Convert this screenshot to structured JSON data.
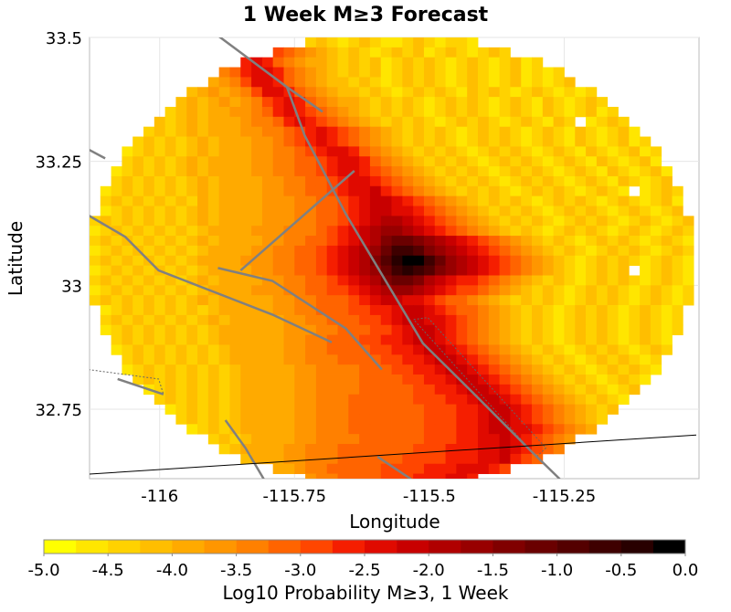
{
  "chart_data": {
    "type": "heatmap",
    "title": "1 Week M≥3 Forecast",
    "xlabel": "Longitude",
    "ylabel": "Latitude",
    "xlim": [
      -116.13,
      -115.0
    ],
    "ylim": [
      32.61,
      33.5
    ],
    "xticks": [
      -116,
      -115.75,
      -115.5,
      -115.25
    ],
    "xtick_labels": [
      "-116",
      "-115.75",
      "-115.5",
      "-115.25"
    ],
    "yticks": [
      33.5,
      33.25,
      33.0,
      32.75
    ],
    "ytick_labels": [
      "33.5",
      "33.25",
      "33",
      "32.75"
    ],
    "grid": true,
    "grid_cells": {
      "lon_start": -116.13,
      "lat_start": 33.5,
      "cell_deg": 0.02,
      "encoding": "a..t = color bins -5.0 to 0.0 in 0.25 steps, '.' = no value",
      "rows": [
        "....................cdcbcdcbbcdcbccb",
        ".................ihgfedcdcbcdcdbcdcbcdc",
        "..............jkjhgfeedcdcdbcdcdcbcdcbcdbc",
        "............ghjkkjhgfedcdcdbcdcdcbcdcbcdbcbc",
        "...........efgikkjhgfeddcdcbcdcdcbcdcbcdbcbcd",
        ".........defefgikkjhgfeddcdcbcdcdcbdcdcbcdcbcbc",
        "........dedefefgijkjhgfeedcdcdcbcdcdcbcdcbdcbcdc",
        ".......cdedeeffghjkjihgfedcdcdcbcdcdcbcdcbdcbcdbc",
        "......dcdedeeefgghjkjihgfedcdcdcbcdcdcbcdcbdc.bcdc",
        ".....cdcdedeeeffgghijkjihgfedcdcdcbcdcdcbcdcbdcbcdb",
        "....cdcdcdedeeeffghijkjihgfedcdcdcbcdcdcbcdcbdcbcdbc",
        "...bcdcdcdedeeeffgghijkkjhgfedcdcdcbcdcdcbcdcbdcbcdbc",
        "...cdcdcdedeeeeffgghhijkkjhgfedcdcdcbcdcdcbcdcbdcbcdb",
        "..bcdcdcdedeeeeffgghhijkkjihgfedcdcdcbcdcdcbcdcbdcbcdb",
        "..cdcdcdcdedeeeeffgghhijkkjihgfedcdcdcbcdcdcbcdcbdcbcd",
        ".bcdcdcdcdedeeeeffgghhijkkljihgfedcdcdcbcdcdcbcdcb.bcdc",
        ".cdcdcdcdcedeeeefffgghhijkllkjihgfedcdcdcbcdcdcbcdcbcdb",
        ".bcdcdcdcdedeeeefffgghhijkllkkjihgfedcdcdcbcdcdcbcdcbcd",
        "cdcdcdcdcdedeeeefffgghhijklmmlkjihgfedcdcdcbcdcdcbcdcbcd",
        "bcdcdcdcdcdeeeefffggghijklmnnmlkjihgfedcdcbcdcdcbcdcbcdc",
        "cdcdcdcdcdedeeeeffgghhijklmopponmlkjihgfedcdcbcdcdcbcdcb",
        "bcdcdcdcdcdeeeeffgghhijklmnprrqonmlkjihgfedcdcbcdcdcbcdc",
        "cdcdcdcdcdeeeefffgghhijklmoqsttrpnmlkjihgfedcbcdcdcbcdcb",
        "bcdcdcdcdcdeeeeffgghhijklmnprsrqonmlkjihgfedcbcdcd.bcdcb",
        "cdcdcdcdcdedeeeeffgghhijklmoppomlkjjihgfedcdcbcdcdcbcdcb",
        "bcdcdcdcdcdeeeefffgghhiijklmnnmlkjiihgfedcdcbcdcdcbcdcbc",
        "cdcdcdcdcdedeeeeeffgghhhijkllkkjihhgfedcdcdcbcdcdcbcdcbc",
        ".bcdcdcdcdcdeeeeeffgghhhiijjkllkjihhgfedcdcbcdcdcbcdcbc",
        ".cdcdcdcdcdedeeeeeffgghhhiijkllkkjihgfedcdcbcdcdcbcdcbc",
        ".bcdcdcdcdcdeeeeeefffgghhhiijkllkjihgfedcdcbcdcdcbcdcbc",
        "..cdcdcdcdcdeeeeeeffgghhhiijjkllkjihgfedcdcbcdcdcbcdcb",
        "..bcdcdcdcdcdeeeeeffgghhhhiijjkllkjihgfedcdcbcdcdcbcdc",
        "...cdcdcdcdcdeeeeeffggghhhhiijjkllkjihgfedcdcbcdcdcbc",
        "...bcdcdcdcdcdeeeeeffgggghhhiijjkllkjihgfedcdcbcdcdcb",
        "....cdcdcdcdcdeeeeeffgggghhhhiijjkllkjihgfedcdcbcdcb",
        ".....bcdcdcdcdeeeeeffgggghhhhhiijjkllkjihgfedcdcbcd",
        "......cdcdcdcdeeeeeffggghhhhhhiiijjkllkjihgfedcdcb",
        ".......bcdcdcdeeeeeffggghhhhhhhiiijjkllkjihgfedcd",
        "........cdcdcdeeeeeffggghhhhhhhiiijjkllkjihgfedc",
        ".........bcdcdeeeeeffggghhhhhhhiiijjkllkkjihgfe",
        "...........cdcdeeeeffgggghhhhhhiiijjkklkjihgf",
        "............cdeeeeffggghhhhhhhiiijjjkklkjihg",
        "..............deeeffggghhhhhhiiiijjjkkljih",
        ".................eefgghhhhhiiiijjjkkkji",
        "....................fgghhhhiiijjjkkj"
      ]
    },
    "faults": [
      [
        [
          -115.895,
          33.506
        ],
        [
          -115.764,
          33.4
        ],
        [
          -115.698,
          33.35
        ]
      ],
      [
        [
          -115.764,
          33.4
        ],
        [
          -115.731,
          33.302
        ],
        [
          -115.655,
          33.144
        ],
        [
          -115.512,
          32.883
        ],
        [
          -115.419,
          32.783
        ],
        [
          -115.309,
          32.663
        ],
        [
          -115.258,
          32.609
        ]
      ],
      [
        [
          -115.85,
          33.03
        ],
        [
          -115.639,
          33.231
        ]
      ],
      [
        [
          -116.132,
          33.141
        ],
        [
          -116.064,
          33.098
        ],
        [
          -116.002,
          33.03
        ],
        [
          -115.791,
          32.941
        ],
        [
          -115.681,
          32.885
        ]
      ],
      [
        [
          -115.892,
          33.035
        ],
        [
          -115.791,
          33.009
        ],
        [
          -115.655,
          32.913
        ],
        [
          -115.588,
          32.83
        ]
      ],
      [
        [
          -116.132,
          33.274
        ],
        [
          -116.101,
          33.256
        ]
      ],
      [
        [
          -115.878,
          32.728
        ],
        [
          -115.841,
          32.672
        ],
        [
          -115.807,
          32.609
        ]
      ],
      [
        [
          -115.596,
          32.654
        ],
        [
          -115.534,
          32.609
        ]
      ],
      [
        [
          -116.078,
          32.811
        ],
        [
          -115.993,
          32.78
        ]
      ]
    ],
    "dotted_outlines": [
      [
        [
          -115.529,
          32.931
        ],
        [
          -115.503,
          32.935
        ],
        [
          -115.284,
          32.672
        ],
        [
          -115.301,
          32.654
        ],
        [
          -115.529,
          32.931
        ]
      ],
      [
        [
          -116.132,
          32.83
        ],
        [
          -116.002,
          32.811
        ],
        [
          -115.993,
          32.78
        ]
      ]
    ],
    "border": [
      [
        -116.132,
        32.619
      ],
      [
        -115.005,
        32.698
      ]
    ],
    "fault_color": "#808080",
    "border_color": "#000000",
    "colorbar": {
      "label": "Log10 Probability M≥3, 1 Week",
      "min": -5.0,
      "max": 0.0,
      "step": 0.25,
      "tick_labels": [
        "-5.0",
        "-4.5",
        "-4.0",
        "-3.5",
        "-3.0",
        "-2.5",
        "-2.0",
        "-1.5",
        "-1.0",
        "-0.5",
        "0.0"
      ],
      "colors": [
        "#ffff00",
        "#ffe600",
        "#ffd200",
        "#ffbe00",
        "#ffaa00",
        "#ff9600",
        "#ff8000",
        "#ff6400",
        "#ff4600",
        "#f51e00",
        "#e00a00",
        "#c80000",
        "#b00000",
        "#980000",
        "#800000",
        "#6a0000",
        "#540000",
        "#3e0000",
        "#280000",
        "#000000"
      ]
    }
  }
}
